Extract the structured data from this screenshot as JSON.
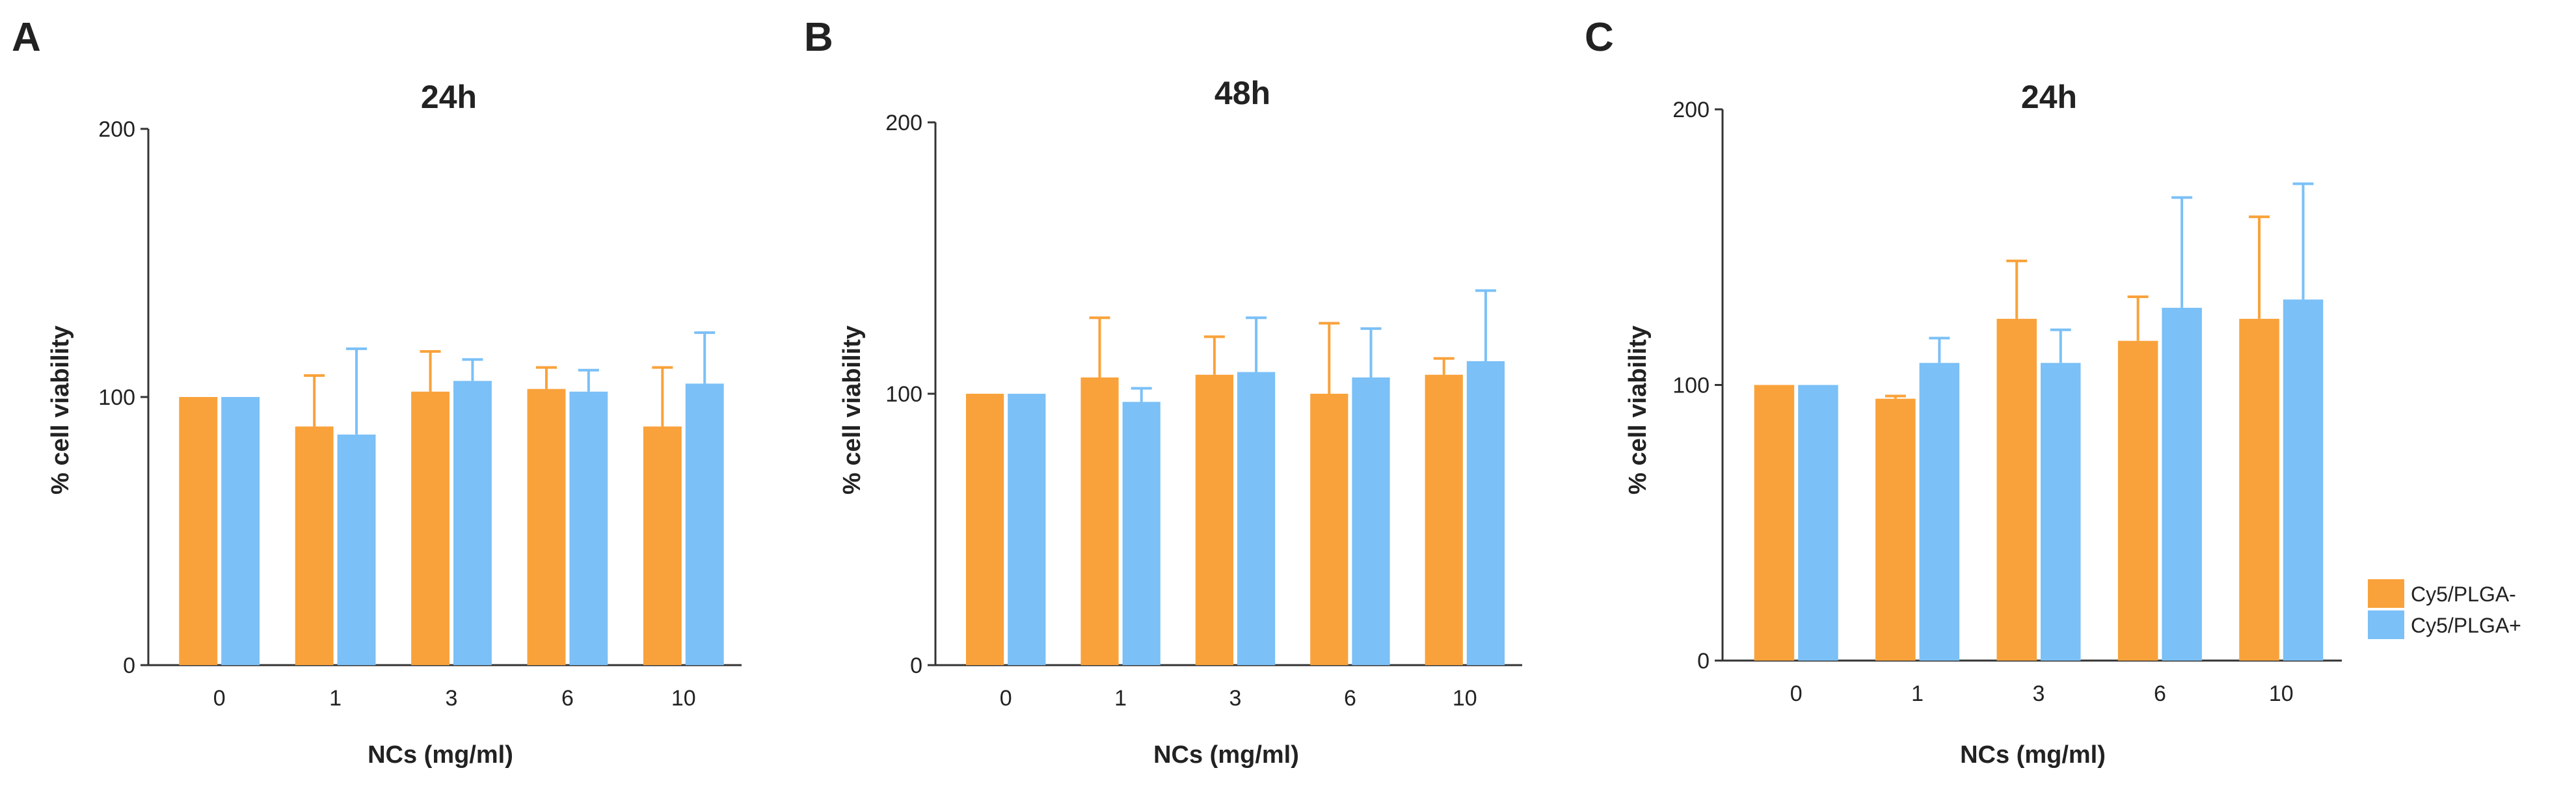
{
  "colors": {
    "series_a": "#F9A23B",
    "series_b": "#7BC0F7",
    "axis": "#333333"
  },
  "legend": [
    {
      "label": "Cy5/PLGA-",
      "color": "#F9A23B"
    },
    {
      "label": "Cy5/PLGA+",
      "color": "#7BC0F7"
    }
  ],
  "chart_data": [
    {
      "panel": "A",
      "type": "bar",
      "title": "24h",
      "xlabel": "NCs (mg/ml)",
      "ylabel": "% cell viability",
      "categories": [
        "0",
        "1",
        "3",
        "6",
        "10"
      ],
      "ylim": [
        0,
        200
      ],
      "yticks": [
        "0",
        "100",
        "200"
      ],
      "series": [
        {
          "name": "Cy5/PLGA-",
          "values": [
            100,
            89,
            102,
            103,
            89
          ],
          "errors": [
            0,
            19,
            15,
            8,
            22
          ]
        },
        {
          "name": "Cy5/PLGA+",
          "values": [
            100,
            86,
            106,
            102,
            105
          ],
          "errors": [
            0,
            32,
            8,
            8,
            19
          ]
        }
      ]
    },
    {
      "panel": "B",
      "type": "bar",
      "title": "48h",
      "xlabel": "NCs (mg/ml)",
      "ylabel": "% cell viability",
      "categories": [
        "0",
        "1",
        "3",
        "6",
        "10"
      ],
      "ylim": [
        0,
        200
      ],
      "yticks": [
        "0",
        "100",
        "200"
      ],
      "series": [
        {
          "name": "Cy5/PLGA-",
          "values": [
            100,
            106,
            107,
            100,
            107
          ],
          "errors": [
            0,
            22,
            14,
            26,
            6
          ]
        },
        {
          "name": "Cy5/PLGA+",
          "values": [
            100,
            97,
            108,
            106,
            112
          ],
          "errors": [
            0,
            5,
            20,
            18,
            26
          ]
        }
      ]
    },
    {
      "panel": "C",
      "type": "bar",
      "title": "24h",
      "xlabel": "NCs (mg/ml)",
      "ylabel": "% cell viability",
      "categories": [
        "0",
        "1",
        "3",
        "6",
        "10"
      ],
      "ylim": [
        0,
        200
      ],
      "yticks": [
        "0",
        "100",
        "200"
      ],
      "series": [
        {
          "name": "Cy5/PLGA-",
          "values": [
            100,
            95,
            124,
            116,
            124
          ],
          "errors": [
            0,
            1,
            21,
            16,
            37
          ]
        },
        {
          "name": "Cy5/PLGA+",
          "values": [
            100,
            108,
            108,
            128,
            131
          ],
          "errors": [
            0,
            9,
            12,
            40,
            42
          ]
        }
      ]
    }
  ]
}
